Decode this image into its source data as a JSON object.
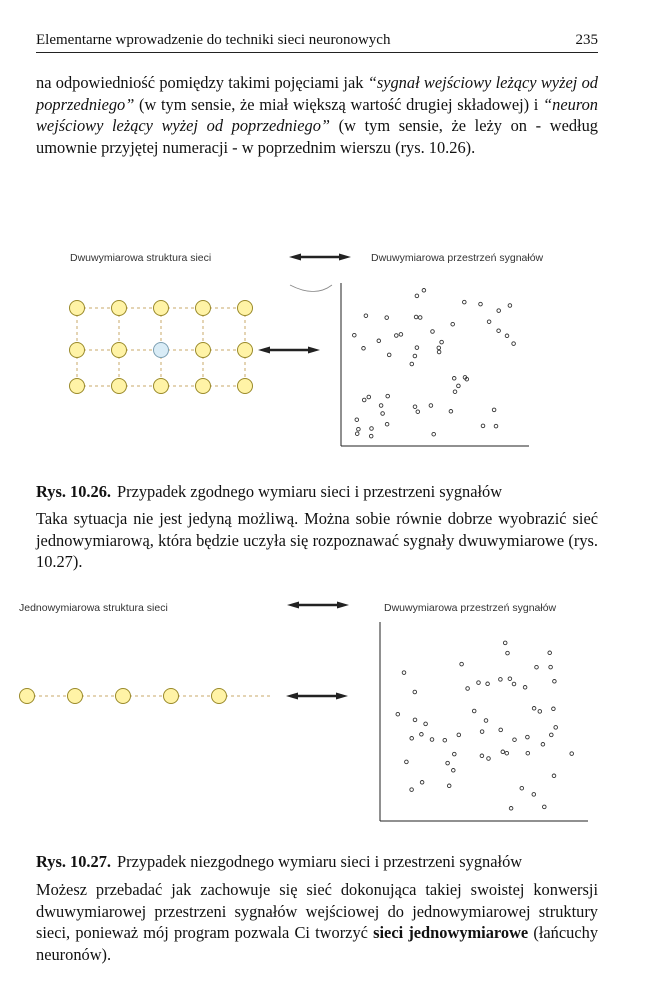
{
  "header": {
    "title": "Elementarne wprowadzenie do techniki sieci neuronowych",
    "page_number": "235"
  },
  "paragraph1": {
    "t1": "na odpowiedniość pomiędzy takimi pojęciami jak ",
    "q1": "“sygnał wejściowy leżący wyżej od poprzedniego”",
    "t2": " (w tym sensie, że miał większą wartość drugiej składowej) i ",
    "q2": "“neuron wejściowy leżący wyżej od poprzedniego”",
    "t3": " (w tym sensie, że leży on - według umownie przyjętej numeracji - w poprzednim wierszu (rys. 10.26)."
  },
  "figure1": {
    "left_label": "Dwuwymiarowa struktura sieci",
    "right_label": "Dwuwymiarowa przestrzeń sygnałów"
  },
  "caption1": {
    "label": "Rys. 10.26.",
    "text": "Przypadek zgodnego wymiaru sieci i przestrzeni sygnałów"
  },
  "paragraph2": {
    "text": "Taka sytuacja nie jest jedyną możliwą. Można sobie równie dobrze wyobrazić sieć jednowymiarową, która będzie uczyła się rozpoznawać sygnały dwuwymiarowe (rys. 10.27)."
  },
  "figure2": {
    "left_label": "Jednowymiarowa struktura sieci",
    "right_label": "Dwuwymiarowa przestrzeń sygnałów"
  },
  "caption2": {
    "label": "Rys. 10.27.",
    "text": "Przypadek niezgodnego wymiaru sieci i przestrzeni sygnałów"
  },
  "paragraph3": {
    "t1": "Możesz przebadać jak zachowuje się sieć dokonująca takiej swoistej konwersji dwuwymiarowej przestrzeni sygnałów wejściowej do jednowymiarowej struktury sieci, ponieważ mój program pozwala Ci tworzyć ",
    "bold": "sieci jednowymiarowe",
    "t2": " (łańcuchy neuronów)."
  },
  "colors": {
    "neuron_fill": "#fff3a6",
    "neuron_stroke": "#9a8a2a",
    "highlight_fill": "#d9ecf6",
    "highlight_stroke": "#7c9fb2",
    "link_color": "#c9a86a"
  }
}
